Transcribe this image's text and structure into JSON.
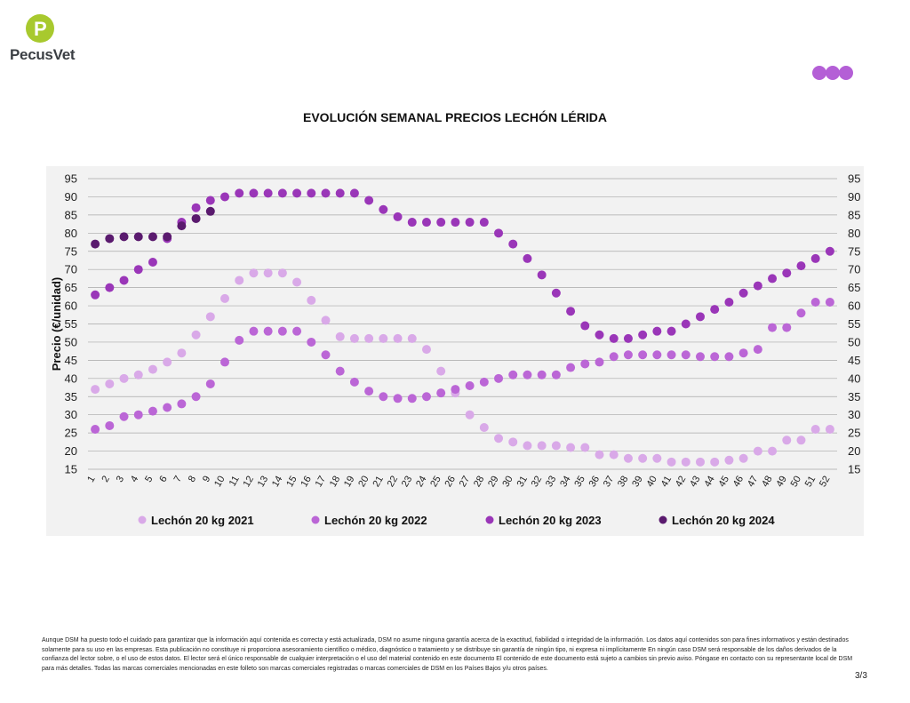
{
  "brand": {
    "logo_letter": "P",
    "name": "PecusVet",
    "logo_colors": [
      "#a8c92e",
      "#8cc63f"
    ],
    "dot_colors": [
      "#b45fd6",
      "#b45fd6",
      "#b45fd6"
    ]
  },
  "footer": {
    "disclaimer": "Aunque DSM ha puesto todo el cuidado para garantizar que la información aquí contenida es correcta y está actualizada, DSM no asume ninguna garantía acerca de la exactitud, fiabilidad o integridad de la información. Los datos aquí contenidos son para fines informativos y están destinados solamente para su uso en las empresas. Esta publicación no constituye ni proporciona asesoramiento científico o médico, diagnóstico o tratamiento y se distribuye sin garantía de ningún tipo, ni expresa ni implícitamente En ningún caso DSM será responsable de los daños derivados de la confianza del lector sobre, o el uso de estos datos. El lector será el único responsable de cualquier interpretación o el uso del material contenido en este documento El contenido de este documento está sujeto a cambios sin previo aviso. Póngase en contacto con su representante local de DSM para más detalles. Todas las marcas comerciales mencionadas en este folleto son marcas comerciales registradas o marcas comerciales de DSM en los Países Bajos y/u otros países.",
    "page_number": "3/3"
  },
  "chart_data": {
    "type": "scatter",
    "title": "EVOLUCIÓN SEMANAL PRECIOS LECHÓN LÉRIDA",
    "xlabel": "",
    "ylabel": "Precio (€/unidad)",
    "ylim": [
      15,
      95
    ],
    "yticks": [
      15,
      20,
      25,
      30,
      35,
      40,
      45,
      50,
      55,
      60,
      65,
      70,
      75,
      80,
      85,
      90,
      95
    ],
    "secondary_y_axis": true,
    "grid": true,
    "legend_position": "bottom",
    "x": [
      1,
      2,
      3,
      4,
      5,
      6,
      7,
      8,
      9,
      10,
      11,
      12,
      13,
      14,
      15,
      16,
      17,
      18,
      19,
      20,
      21,
      22,
      23,
      24,
      25,
      26,
      27,
      28,
      29,
      30,
      31,
      32,
      33,
      34,
      35,
      36,
      37,
      38,
      39,
      40,
      41,
      42,
      43,
      44,
      45,
      46,
      47,
      48,
      49,
      50,
      51,
      52
    ],
    "series": [
      {
        "name": "Lechón 20 kg 2021",
        "color": "#d9a9e8",
        "values": [
          37,
          38.5,
          40,
          41,
          42.5,
          44.5,
          47,
          52,
          57,
          62,
          67,
          69,
          69,
          69,
          66.5,
          61.5,
          56,
          51.5,
          51,
          51,
          51,
          51,
          51,
          48,
          42,
          36,
          30,
          26.5,
          23.5,
          22.5,
          21.5,
          21.5,
          21.5,
          21,
          21,
          19,
          19,
          18,
          18,
          18,
          17,
          17,
          17,
          17,
          17.5,
          18,
          20,
          20,
          23,
          23,
          26,
          26
        ]
      },
      {
        "name": "Lechón 20 kg 2022",
        "color": "#bb66d6",
        "values": [
          26,
          27,
          29.5,
          30,
          31,
          32,
          33,
          35,
          38.5,
          44.5,
          50.5,
          53,
          53,
          53,
          53,
          50,
          46.5,
          42,
          39,
          36.5,
          35,
          34.5,
          34.5,
          35,
          36,
          37,
          38,
          39,
          40,
          41,
          41,
          41,
          41,
          43,
          44,
          44.5,
          46,
          46.5,
          46.5,
          46.5,
          46.5,
          46.5,
          46,
          46,
          46,
          47,
          48,
          54,
          54,
          58,
          61,
          61
        ]
      },
      {
        "name": "Lechón 20 kg 2023",
        "color": "#9a36b8",
        "values": [
          63,
          65,
          67,
          70,
          72,
          78.5,
          83,
          87,
          89,
          90,
          91,
          91,
          91,
          91,
          91,
          91,
          91,
          91,
          91,
          89,
          86.5,
          84.5,
          83,
          83,
          83,
          83,
          83,
          83,
          80,
          77,
          73,
          68.5,
          63.5,
          58.5,
          54.5,
          52,
          51,
          51,
          52,
          53,
          53,
          55,
          57,
          59,
          61,
          63.5,
          65.5,
          67.5,
          69,
          71,
          73,
          75
        ]
      },
      {
        "name": "Lechón 20 kg 2024",
        "color": "#5a1a6e",
        "values": [
          77,
          78.5,
          79,
          79,
          79,
          79,
          82,
          84,
          86
        ]
      }
    ]
  }
}
